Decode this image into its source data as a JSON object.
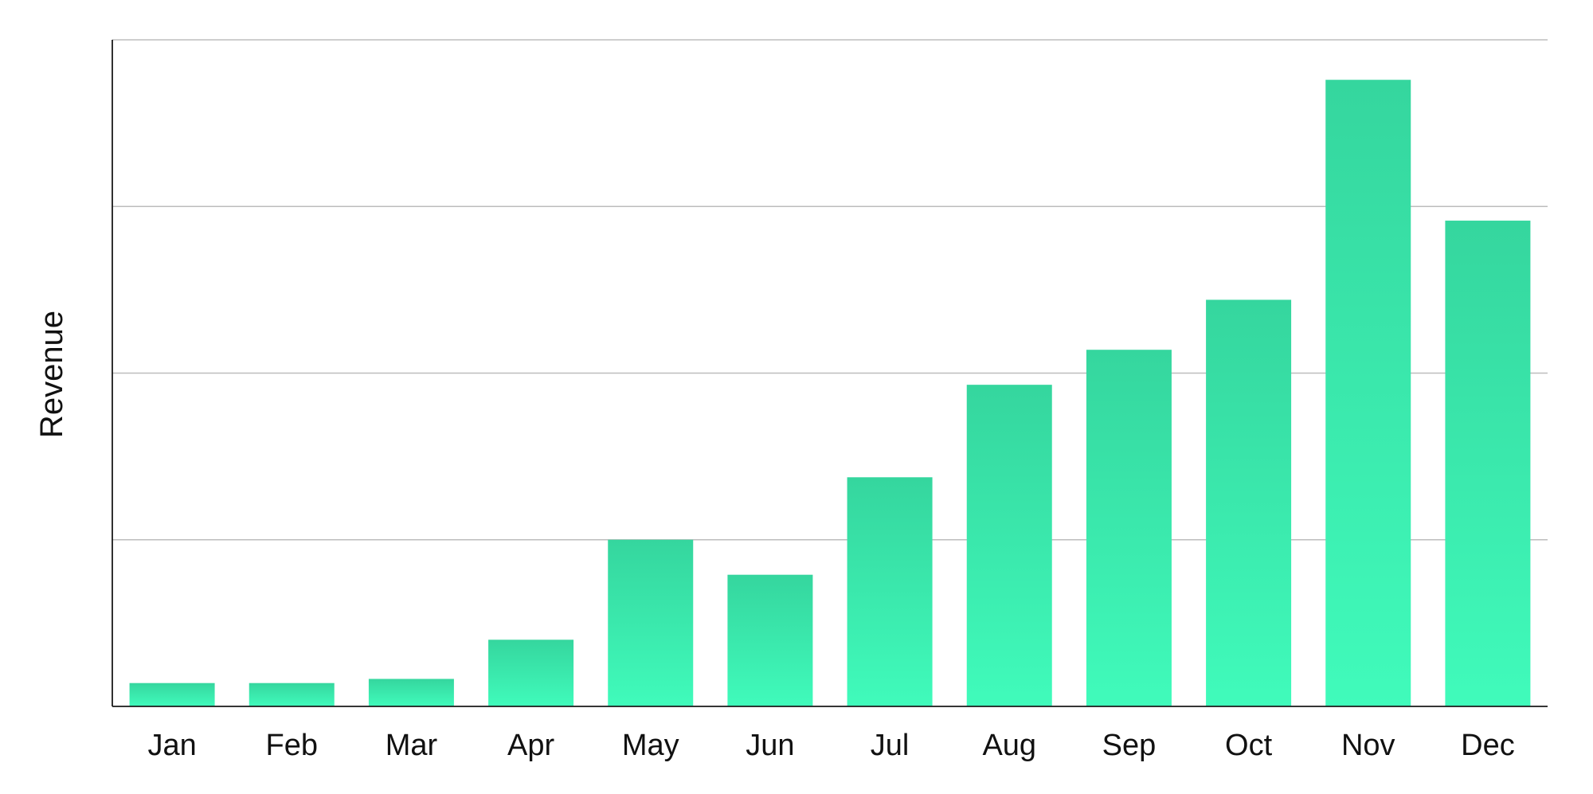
{
  "chart_data": {
    "type": "bar",
    "title": "",
    "xlabel": "",
    "ylabel": "Revenue",
    "categories": [
      "Jan",
      "Feb",
      "Mar",
      "Apr",
      "May",
      "Jun",
      "Jul",
      "Aug",
      "Sep",
      "Oct",
      "Nov",
      "Dec"
    ],
    "values": [
      1.4,
      1.4,
      1.65,
      4.0,
      10.0,
      7.9,
      13.75,
      19.3,
      21.4,
      24.4,
      37.6,
      29.15
    ],
    "ylim": [
      0,
      40
    ],
    "y_gridlines": [
      10,
      20,
      30,
      40
    ],
    "grid": true,
    "y_tick_labels_shown": false,
    "legend": "none",
    "bar_color_top": "#35d69e",
    "bar_color_bottom": "#40fbbb"
  }
}
